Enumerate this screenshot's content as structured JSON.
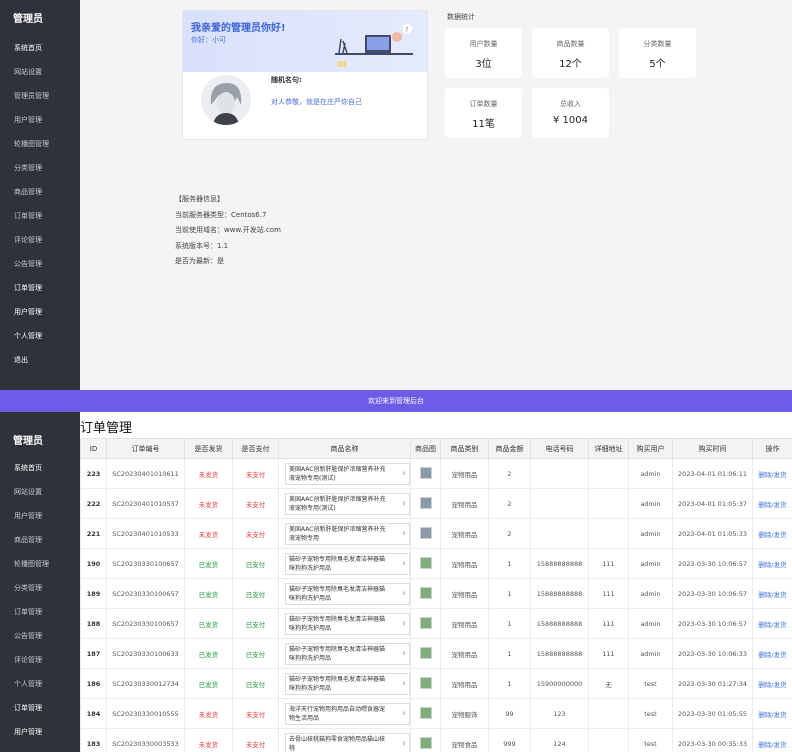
{
  "sidebar_top": {
    "brand": "管理员",
    "items": [
      "系统首页",
      "网站设置",
      "管理员管理",
      "用户管理",
      "轮播图管理",
      "分类管理",
      "商品管理",
      "订单管理",
      "评论管理",
      "公告管理",
      "订单管理",
      "用户管理",
      "个人管理",
      "退出"
    ]
  },
  "welcome": {
    "title": "我亲爱的管理员你好!",
    "user": "你好：小可",
    "motto_title": "随机名句:",
    "motto_text": "对人恭敬，就是在庄严你自己"
  },
  "stats": {
    "title": "数据统计",
    "items": [
      {
        "label": "用户数量",
        "value": "3位"
      },
      {
        "label": "商品数量",
        "value": "12个"
      },
      {
        "label": "分类数量",
        "value": "5个"
      },
      {
        "label": "订单数量",
        "value": "11笔"
      },
      {
        "label": "总收入",
        "value": "¥ 1004"
      }
    ]
  },
  "server": {
    "lines": [
      "【服务器信息】",
      "当前服务器类型：Centos6.7",
      "当前使用域名：www.开发站.com",
      "系统版本号：1.1",
      "是否为最新：是"
    ]
  },
  "banner": "欢迎来到管理后台",
  "sidebar_bottom": {
    "brand": "管理员",
    "items": [
      "系统首页",
      "网站设置",
      "用户管理",
      "商品管理",
      "轮播图管理",
      "分类管理",
      "订单管理",
      "公告管理",
      "评论管理",
      "个人管理",
      "订单管理",
      "用户管理"
    ]
  },
  "orders": {
    "title": "订单管理",
    "headers": [
      "ID",
      "订单编号",
      "是否发货",
      "是否支付",
      "商品名称",
      "商品图",
      "商品类别",
      "商品金额",
      "电话号码",
      "详细地址",
      "购买用户",
      "购买时间",
      "操作"
    ],
    "rows": [
      {
        "id": "223",
        "no": "SC20230401010611",
        "ship": "未发货",
        "pay": "未支付",
        "name": "美国AAC创新肝脏保护浓缩营养补充液宠物专用(测试)",
        "cat": "宠物用品",
        "amount": "2",
        "phone": "",
        "addr": "",
        "user": "admin",
        "time": "2023-04-01 01:06:11",
        "op": "删除/发货"
      },
      {
        "id": "222",
        "no": "SC20230401010537",
        "ship": "未发货",
        "pay": "未支付",
        "name": "美国AAC创新肝脏保护浓缩营养补充液宠物专用(测试)",
        "cat": "宠物用品",
        "amount": "2",
        "phone": "",
        "addr": "",
        "user": "admin",
        "time": "2023-04-01 01:05:37",
        "op": "删除/发货"
      },
      {
        "id": "221",
        "no": "SC20230401010533",
        "ship": "未发货",
        "pay": "未支付",
        "name": "美国AAC创新肝脏保护浓缩营养补充液宠物专用",
        "cat": "宠物用品",
        "amount": "2",
        "phone": "",
        "addr": "",
        "user": "admin",
        "time": "2023-04-01 01:05:33",
        "op": "删除/发货"
      },
      {
        "id": "190",
        "no": "SC20230330100657",
        "ship": "已发货",
        "pay": "已支付",
        "name": "猫砂子宠物专用除臭毛发清洁神器猫咪狗狗洗护用品",
        "cat": "宠物用品",
        "amount": "1",
        "phone": "15888888888",
        "addr": "111",
        "user": "admin",
        "time": "2023-03-30 10:06:57",
        "op": "删除/发货"
      },
      {
        "id": "189",
        "no": "SC20230330100657",
        "ship": "已发货",
        "pay": "已支付",
        "name": "猫砂子宠物专用除臭毛发清洁神器猫咪狗狗洗护用品",
        "cat": "宠物用品",
        "amount": "1",
        "phone": "15888888888",
        "addr": "111",
        "user": "admin",
        "time": "2023-03-30 10:06:57",
        "op": "删除/发货"
      },
      {
        "id": "188",
        "no": "SC20230330100657",
        "ship": "已发货",
        "pay": "已支付",
        "name": "猫砂子宠物专用除臭毛发清洁神器猫咪狗狗洗护用品",
        "cat": "宠物用品",
        "amount": "1",
        "phone": "15888888888",
        "addr": "111",
        "user": "admin",
        "time": "2023-03-30 10:06:57",
        "op": "删除/发货"
      },
      {
        "id": "187",
        "no": "SC20230330100633",
        "ship": "已发货",
        "pay": "已支付",
        "name": "猫砂子宠物专用除臭毛发清洁神器猫咪狗狗洗护用品",
        "cat": "宠物用品",
        "amount": "1",
        "phone": "15888888888",
        "addr": "111",
        "user": "admin",
        "time": "2023-03-30 10:06:33",
        "op": "删除/发货"
      },
      {
        "id": "186",
        "no": "SC20230330012734",
        "ship": "已发货",
        "pay": "已支付",
        "name": "猫砂子宠物专用除臭毛发清洁神器猫咪狗狗洗护用品",
        "cat": "宠物用品",
        "amount": "1",
        "phone": "15900000000",
        "addr": "无",
        "user": "test",
        "time": "2023-03-30 01:27:34",
        "op": "删除/发货"
      },
      {
        "id": "184",
        "no": "SC20230330010555",
        "ship": "未发货",
        "pay": "未支付",
        "name": "海洋天行宠物用狗用品自动喂食器宠物生活用品",
        "cat": "宠物服饰",
        "amount": "99",
        "phone": "123",
        "addr": "",
        "user": "test",
        "time": "2023-03-30 01:05:55",
        "op": "删除/发货"
      },
      {
        "id": "183",
        "no": "SC20230330003533",
        "ship": "未发货",
        "pay": "未支付",
        "name": "去骨山核桃猫狗零食宠物用品猫山核桃",
        "cat": "宠物食品",
        "amount": "999",
        "phone": "124",
        "addr": "",
        "user": "test",
        "time": "2023-03-30 00:35:33",
        "op": "删除/发货"
      }
    ]
  }
}
